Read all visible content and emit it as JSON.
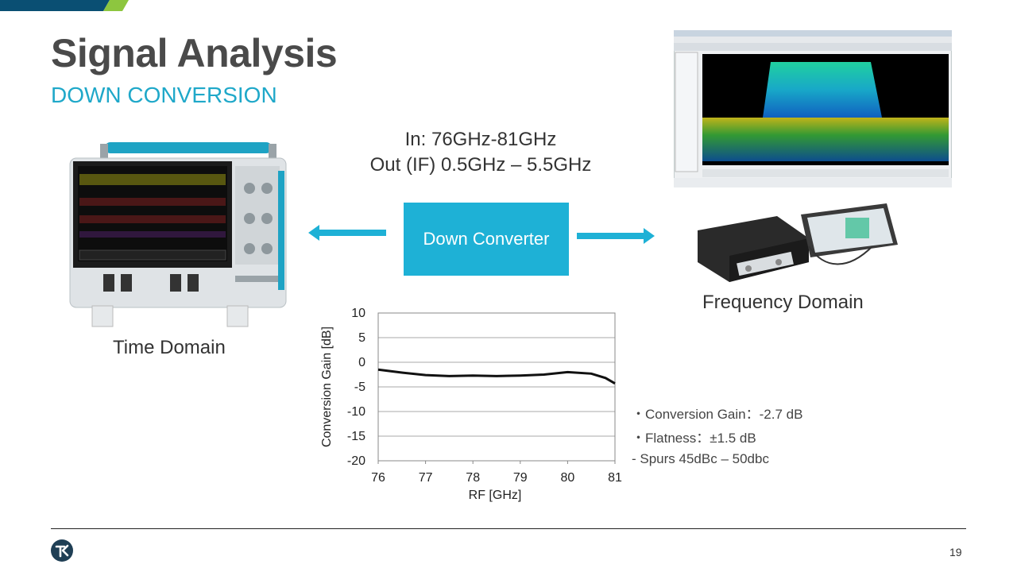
{
  "slide": {
    "title": "Signal Analysis",
    "subtitle": "DOWN CONVERSION",
    "page_number": "19"
  },
  "converter": {
    "input_label": "In: 76GHz-81GHz",
    "output_label": "Out (IF) 0.5GHz – 5.5GHz",
    "box_label": "Down Converter"
  },
  "domains": {
    "time_label": "Time Domain",
    "frequency_label": "Frequency Domain"
  },
  "specs": [
    "・Conversion Gain：-2.7 dB",
    "・Flatness：±1.5 dB",
    "- Spurs 45dBc – 50dbc"
  ],
  "colors": {
    "accent_blue": "#1eb1d6",
    "title_gray": "#4a4a4a",
    "subtitle_teal": "#1fa8c9",
    "dark_blue": "#0a4f73"
  },
  "chart_data": {
    "type": "line",
    "xlabel": "RF [GHz]",
    "ylabel": "Conversion Gain [dB]",
    "xlim": [
      76,
      81
    ],
    "ylim": [
      -20,
      10
    ],
    "x_ticks": [
      76,
      77,
      78,
      79,
      80,
      81
    ],
    "y_ticks": [
      10,
      5,
      0,
      -5,
      -10,
      -15,
      -20
    ],
    "grid": true,
    "series": [
      {
        "x": [
          76,
          76.5,
          77,
          77.5,
          78,
          78.5,
          79,
          79.5,
          80,
          80.5,
          80.8,
          81
        ],
        "values": [
          -1.5,
          -2.1,
          -2.6,
          -2.8,
          -2.7,
          -2.8,
          -2.7,
          -2.5,
          -2.0,
          -2.3,
          -3.2,
          -4.3
        ]
      }
    ]
  }
}
